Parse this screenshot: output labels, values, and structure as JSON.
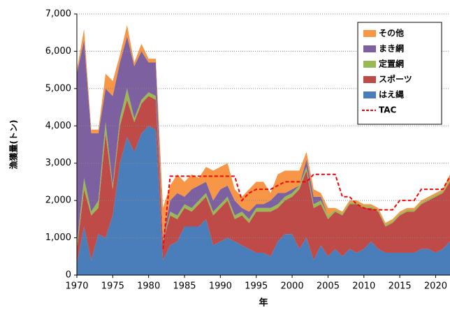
{
  "chart_data": {
    "type": "stacked_area",
    "x_label": "年",
    "y_label": "漁獲量(トン)",
    "x": [
      1970,
      1971,
      1972,
      1973,
      1974,
      1975,
      1976,
      1977,
      1978,
      1979,
      1980,
      1981,
      1982,
      1983,
      1984,
      1985,
      1986,
      1987,
      1988,
      1989,
      1990,
      1991,
      1992,
      1993,
      1994,
      1995,
      1996,
      1997,
      1998,
      1999,
      2000,
      2001,
      2002,
      2003,
      2004,
      2005,
      2006,
      2007,
      2008,
      2009,
      2010,
      2011,
      2012,
      2013,
      2014,
      2015,
      2016,
      2017,
      2018,
      2019,
      2020,
      2021,
      2022
    ],
    "series": [
      {
        "name": "はえ縄",
        "color": "#4a7ebb",
        "values": [
          300,
          1300,
          400,
          1100,
          1000,
          1600,
          3000,
          3700,
          3300,
          3800,
          4000,
          3900,
          400,
          800,
          900,
          1300,
          1300,
          1300,
          1500,
          800,
          900,
          1000,
          900,
          800,
          700,
          600,
          600,
          500,
          900,
          1100,
          1100,
          700,
          1000,
          400,
          800,
          500,
          700,
          500,
          700,
          600,
          700,
          900,
          700,
          600,
          600,
          600,
          600,
          600,
          700,
          700,
          600,
          700,
          900
        ]
      },
      {
        "name": "スポーツ",
        "color": "#be4b48",
        "values": [
          400,
          1000,
          1200,
          700,
          2800,
          700,
          1000,
          1000,
          800,
          800,
          800,
          800,
          500,
          800,
          600,
          500,
          400,
          600,
          600,
          800,
          900,
          1000,
          600,
          800,
          700,
          1100,
          1100,
          1200,
          900,
          900,
          1000,
          1600,
          1800,
          1400,
          1100,
          1000,
          1000,
          1100,
          1200,
          1300,
          1100,
          900,
          1000,
          700,
          800,
          1000,
          1100,
          1100,
          1200,
          1300,
          1500,
          1500,
          1600
        ]
      },
      {
        "name": "定置網",
        "color": "#98b954",
        "values": [
          100,
          300,
          100,
          200,
          300,
          100,
          200,
          300,
          100,
          100,
          100,
          100,
          50,
          100,
          100,
          100,
          100,
          100,
          100,
          100,
          100,
          100,
          100,
          100,
          100,
          100,
          100,
          100,
          100,
          100,
          100,
          100,
          100,
          100,
          100,
          100,
          50,
          50,
          50,
          50,
          50,
          50,
          50,
          50,
          50,
          50,
          50,
          50,
          50,
          50,
          50,
          50,
          50
        ]
      },
      {
        "name": "まき網",
        "color": "#7d60a0",
        "values": [
          4600,
          3700,
          2100,
          1800,
          900,
          2400,
          1500,
          1400,
          1400,
          1300,
          800,
          900,
          50,
          300,
          600,
          200,
          500,
          400,
          300,
          300,
          400,
          300,
          400,
          100,
          200,
          100,
          100,
          200,
          300,
          100,
          100,
          0,
          200,
          200,
          100,
          0,
          0,
          0,
          0,
          0,
          0,
          0,
          0,
          0,
          0,
          0,
          0,
          0,
          0,
          0,
          0,
          0,
          0
        ]
      },
      {
        "name": "その他",
        "color": "#f79646",
        "values": [
          100,
          300,
          100,
          100,
          400,
          400,
          200,
          300,
          100,
          200,
          100,
          100,
          800,
          400,
          500,
          400,
          400,
          200,
          400,
          800,
          600,
          600,
          300,
          300,
          600,
          600,
          600,
          200,
          500,
          600,
          500,
          400,
          200,
          200,
          100,
          200,
          50,
          50,
          50,
          50,
          50,
          50,
          50,
          50,
          50,
          50,
          50,
          50,
          50,
          50,
          50,
          50,
          150
        ]
      }
    ],
    "lines": [
      {
        "name": "TAC",
        "color": "#ff0000",
        "values": [
          null,
          null,
          null,
          null,
          null,
          null,
          null,
          null,
          null,
          null,
          null,
          null,
          700,
          2650,
          2650,
          2650,
          2650,
          2650,
          2650,
          2650,
          2650,
          2650,
          2650,
          2000,
          2200,
          2300,
          2300,
          2300,
          2400,
          2500,
          2500,
          2500,
          2500,
          2700,
          2700,
          2700,
          2700,
          2100,
          2100,
          1900,
          1800,
          1750,
          1750,
          1750,
          1750,
          2000,
          2000,
          2000,
          2300,
          2300,
          2300,
          2300,
          2650
        ]
      }
    ],
    "xlim": [
      1970,
      2022
    ],
    "xticks": [
      1970,
      1975,
      1980,
      1985,
      1990,
      1995,
      2000,
      2005,
      2010,
      2015,
      2020
    ],
    "ylim": [
      0,
      7000
    ],
    "yticks": [
      0,
      {
        "value": 1000,
        "label": "1,000"
      },
      {
        "value": 2000,
        "label": "2,000"
      },
      {
        "value": 3000,
        "label": "3,000"
      },
      {
        "value": 4000,
        "label": "4,000"
      },
      {
        "value": 5000,
        "label": "5,000"
      },
      {
        "value": 6000,
        "label": "6,000"
      },
      {
        "value": 7000,
        "label": "7,000"
      }
    ],
    "grid": true,
    "legend": "top-right"
  }
}
